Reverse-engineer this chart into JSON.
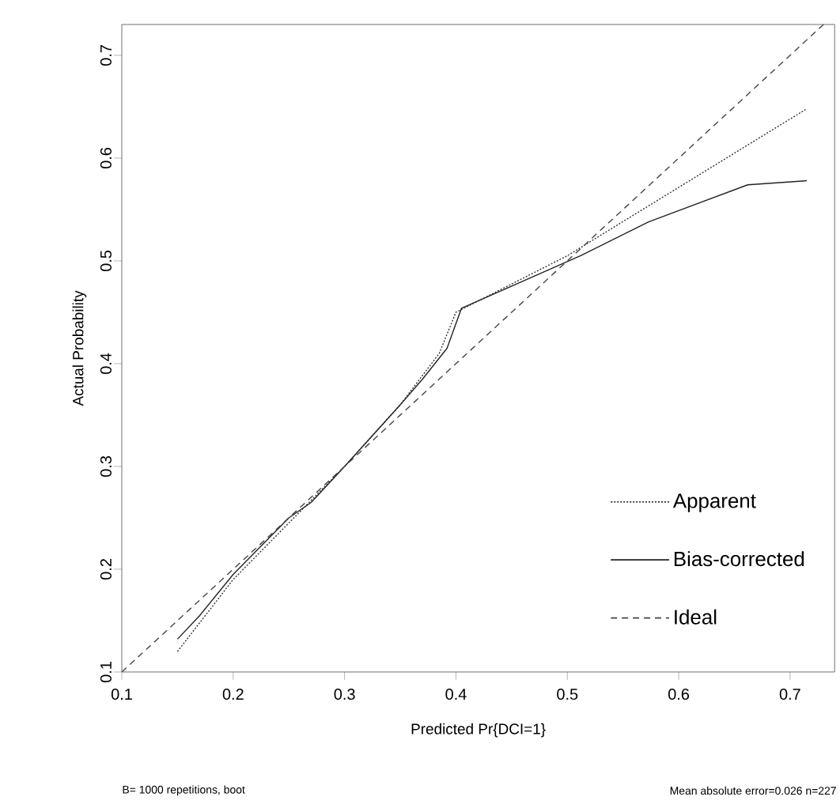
{
  "chart_data": {
    "type": "line",
    "xlabel": "Predicted Pr{DCI=1}",
    "ylabel": "Actual Probability",
    "xlim": [
      0.1,
      0.74
    ],
    "ylim": [
      0.1,
      0.73
    ],
    "xticks": [
      0.1,
      0.2,
      0.3,
      0.4,
      0.5,
      0.6,
      0.7
    ],
    "yticks": [
      0.1,
      0.2,
      0.3,
      0.4,
      0.5,
      0.6,
      0.7
    ],
    "series": [
      {
        "name": "Apparent",
        "color": "#333333",
        "line_style": "dotted",
        "x": [
          0.15,
          0.2,
          0.25,
          0.3,
          0.35,
          0.385,
          0.4,
          0.5,
          0.715
        ],
        "values": [
          0.12,
          0.19,
          0.245,
          0.3,
          0.36,
          0.41,
          0.45,
          0.505,
          0.648
        ]
      },
      {
        "name": "Bias-corrected",
        "color": "#222222",
        "line_style": "solid",
        "x": [
          0.15,
          0.17,
          0.2,
          0.25,
          0.27,
          0.3,
          0.35,
          0.37,
          0.392,
          0.405,
          0.512,
          0.573,
          0.662,
          0.715
        ],
        "values": [
          0.132,
          0.155,
          0.195,
          0.25,
          0.265,
          0.3,
          0.36,
          0.385,
          0.415,
          0.454,
          0.505,
          0.538,
          0.574,
          0.578
        ]
      },
      {
        "name": "Ideal",
        "color": "#444444",
        "line_style": "dashed",
        "x": [
          0.1,
          0.73
        ],
        "values": [
          0.1,
          0.73
        ]
      }
    ],
    "legend": "bottom right",
    "marker": "none",
    "grid": false,
    "annotations": [
      "B= 1000 repetitions, boot",
      "Mean absolute error=0.026 n=227"
    ]
  }
}
